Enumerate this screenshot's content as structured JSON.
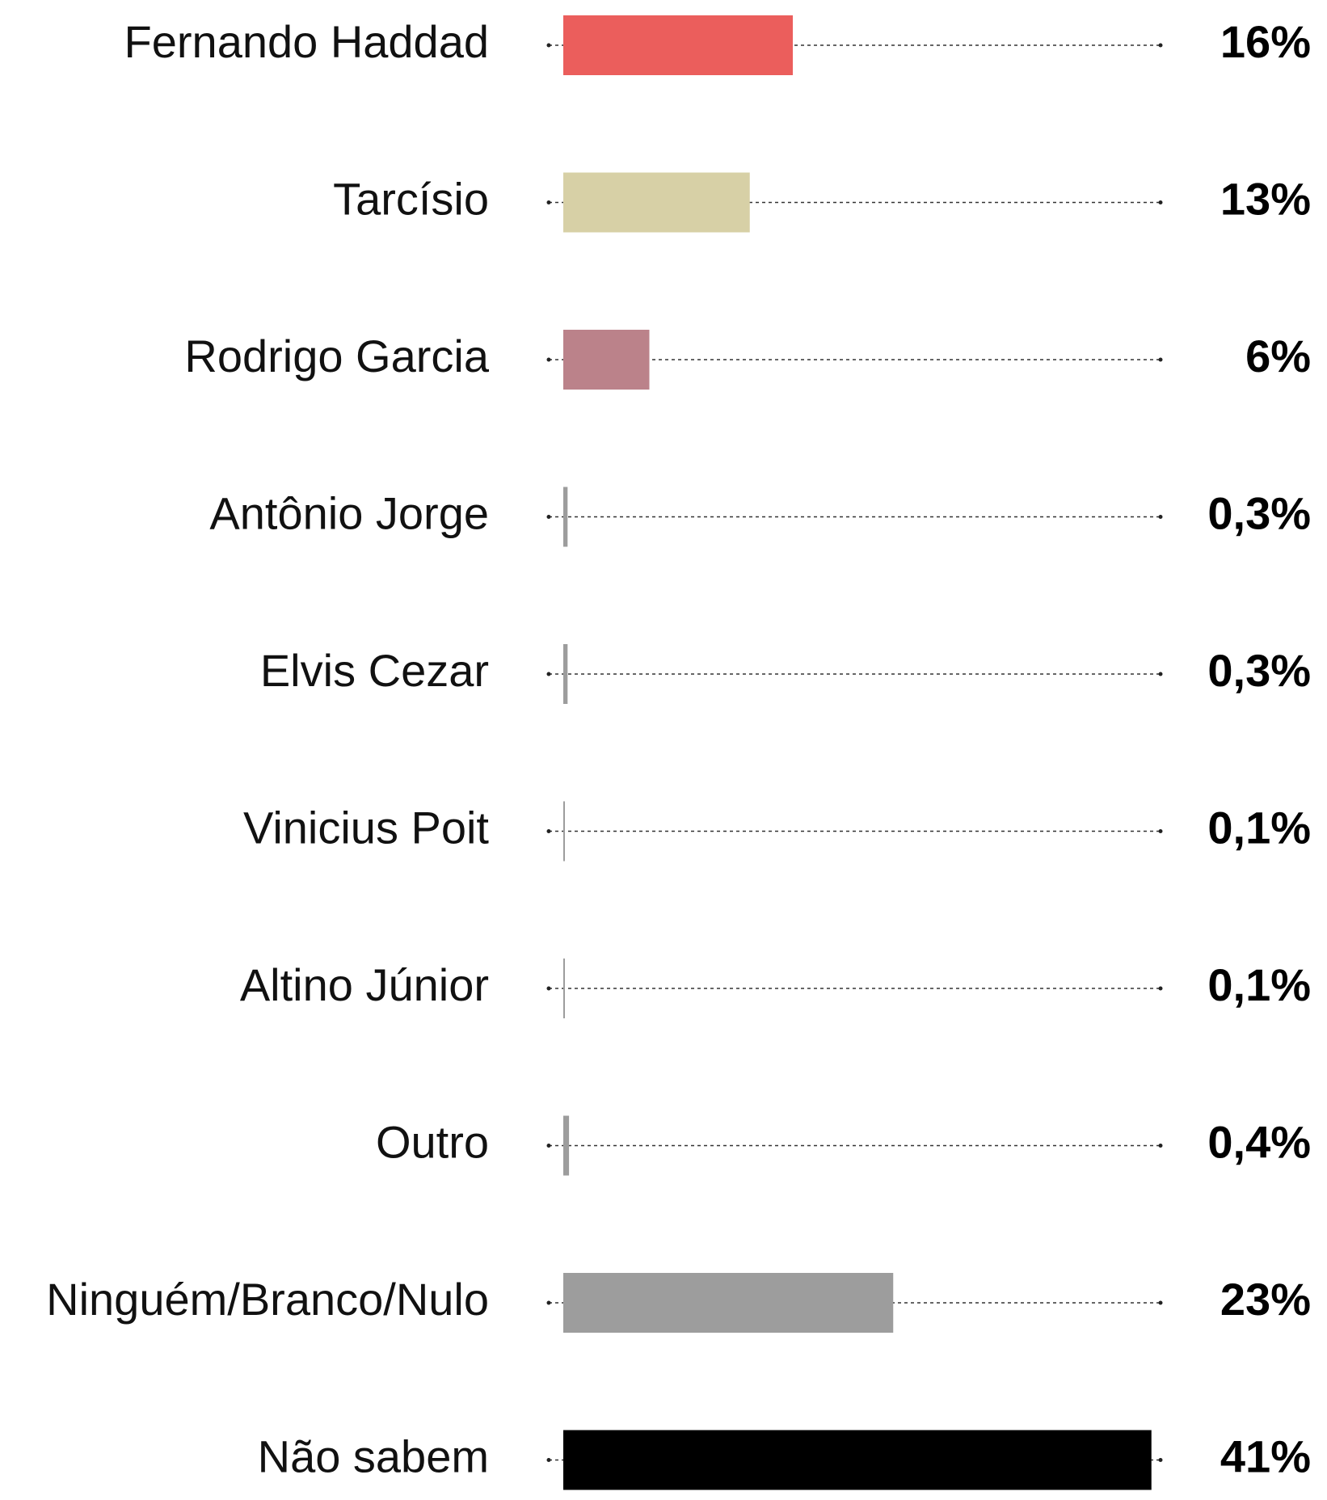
{
  "chart_data": {
    "type": "barh",
    "categories": [
      "Fernando Haddad",
      "Tarcísio",
      "Rodrigo Garcia",
      "Antônio Jorge",
      "Elvis Cezar",
      "Vinicius Poit",
      "Altino Júnior",
      "Outro",
      "Ninguém/Branco/Nulo",
      "Não sabem"
    ],
    "values": [
      16,
      13,
      6,
      0.3,
      0.3,
      0.1,
      0.1,
      0.4,
      23,
      41
    ],
    "value_labels": [
      "16%",
      "13%",
      "6%",
      "0,3%",
      "0,3%",
      "0,1%",
      "0,1%",
      "0,4%",
      "23%",
      "41%"
    ],
    "colors": [
      "#eb5e5c",
      "#d7d0a6",
      "#bb828a",
      "#9d9d9d",
      "#9d9d9d",
      "#9d9d9d",
      "#9d9d9d",
      "#9d9d9d",
      "#9d9d9d",
      "#000000"
    ]
  }
}
